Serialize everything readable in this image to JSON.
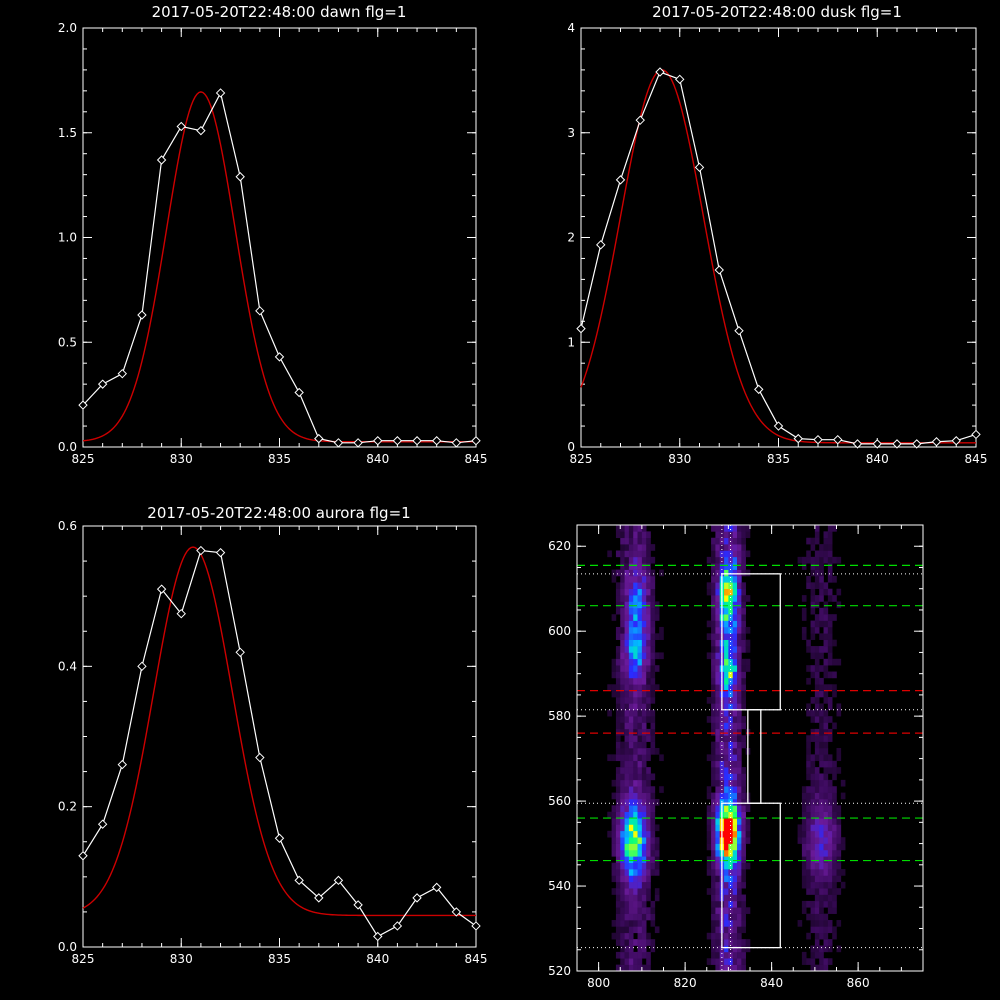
{
  "chart_data": [
    {
      "id": "dawn",
      "type": "line",
      "title": "2017-05-20T22:48:00 dawn flg=1",
      "xlim": [
        825,
        845
      ],
      "ylim": [
        0,
        2.0
      ],
      "xticks": [
        825,
        830,
        835,
        840,
        845
      ],
      "yticks": [
        0.0,
        0.5,
        1.0,
        1.5,
        2.0
      ],
      "ytick_labels": [
        "0.0",
        "0.5",
        "1.0",
        "1.5",
        "2.0"
      ],
      "xtick_labels": [
        "825",
        "830",
        "835",
        "840",
        "845"
      ],
      "series": [
        {
          "kind": "observed",
          "color": "#ffffff",
          "marker": "diamond",
          "x": [
            825,
            826,
            827,
            828,
            829,
            830,
            831,
            832,
            833,
            834,
            835,
            836,
            837,
            838,
            839,
            840,
            841,
            842,
            843,
            844,
            845
          ],
          "y": [
            0.2,
            0.3,
            0.35,
            0.63,
            1.37,
            1.53,
            1.51,
            1.69,
            1.29,
            0.65,
            0.43,
            0.26,
            0.04,
            0.02,
            0.02,
            0.03,
            0.03,
            0.03,
            0.03,
            0.02,
            0.03
          ]
        },
        {
          "kind": "fit",
          "color": "#cc0000",
          "model": "gaussian",
          "amplitude": 1.67,
          "center": 831.0,
          "sigma": 1.75,
          "offset": 0.025
        }
      ]
    },
    {
      "id": "dusk",
      "type": "line",
      "title": "2017-05-20T22:48:00 dusk flg=1",
      "xlim": [
        825,
        845
      ],
      "ylim": [
        0,
        4
      ],
      "xticks": [
        825,
        830,
        835,
        840,
        845
      ],
      "yticks": [
        0,
        1,
        2,
        3,
        4
      ],
      "ytick_labels": [
        "0",
        "1",
        "2",
        "3",
        "4"
      ],
      "xtick_labels": [
        "825",
        "830",
        "835",
        "840",
        "845"
      ],
      "series": [
        {
          "kind": "observed",
          "color": "#ffffff",
          "marker": "diamond",
          "x": [
            825,
            826,
            827,
            828,
            829,
            830,
            831,
            832,
            833,
            834,
            835,
            836,
            837,
            838,
            839,
            840,
            841,
            842,
            843,
            844,
            845
          ],
          "y": [
            1.13,
            1.93,
            2.55,
            3.12,
            3.58,
            3.51,
            2.67,
            1.69,
            1.11,
            0.55,
            0.2,
            0.08,
            0.07,
            0.07,
            0.03,
            0.03,
            0.03,
            0.03,
            0.05,
            0.06,
            0.12
          ]
        },
        {
          "kind": "fit",
          "color": "#cc0000",
          "model": "gaussian",
          "amplitude": 3.56,
          "center": 829.1,
          "sigma": 2.1,
          "offset": 0.04
        }
      ]
    },
    {
      "id": "aurora",
      "type": "line",
      "title": "2017-05-20T22:48:00 aurora flg=1",
      "xlim": [
        825,
        845
      ],
      "ylim": [
        0,
        0.6
      ],
      "xticks": [
        825,
        830,
        835,
        840,
        845
      ],
      "yticks": [
        0.0,
        0.2,
        0.4,
        0.6
      ],
      "ytick_labels": [
        "0.0",
        "0.2",
        "0.4",
        "0.6"
      ],
      "xtick_labels": [
        "825",
        "830",
        "835",
        "840",
        "845"
      ],
      "series": [
        {
          "kind": "observed",
          "color": "#ffffff",
          "marker": "diamond",
          "x": [
            825,
            826,
            827,
            828,
            829,
            830,
            831,
            832,
            833,
            834,
            835,
            836,
            837,
            838,
            839,
            840,
            841,
            842,
            843,
            844,
            845
          ],
          "y": [
            0.13,
            0.175,
            0.26,
            0.4,
            0.51,
            0.475,
            0.565,
            0.562,
            0.42,
            0.27,
            0.155,
            0.095,
            0.07,
            0.095,
            0.06,
            0.015,
            0.03,
            0.07,
            0.085,
            0.05,
            0.03
          ]
        },
        {
          "kind": "fit",
          "color": "#cc0000",
          "model": "gaussian",
          "amplitude": 0.525,
          "center": 830.6,
          "sigma": 2.0,
          "offset": 0.045
        }
      ]
    },
    {
      "id": "image",
      "type": "heatmap",
      "xlim": [
        795,
        875
      ],
      "ylim": [
        520,
        625
      ],
      "xticks": [
        800,
        820,
        840,
        860
      ],
      "yticks": [
        520,
        540,
        560,
        580,
        600,
        620
      ],
      "xtick_labels": [
        "800",
        "820",
        "840",
        "860"
      ],
      "ytick_labels": [
        "520",
        "540",
        "560",
        "580",
        "600",
        "620"
      ],
      "colormap": [
        "#000000",
        "#3b0a5c",
        "#6a1a9a",
        "#2a2aff",
        "#00c0ff",
        "#00ff80",
        "#ffff00",
        "#ff0000"
      ],
      "emission_columns": [
        {
          "x": 808,
          "width": 3,
          "strength": 0.45
        },
        {
          "x": 829.5,
          "width": 2.2,
          "strength": 0.85
        },
        {
          "x": 851,
          "width": 3,
          "strength": 0.25
        }
      ],
      "bright_spots": [
        {
          "x": 829.5,
          "y": 552,
          "sx": 1.8,
          "sy": 5,
          "v": 1.0
        },
        {
          "x": 807.5,
          "y": 550,
          "sx": 2.2,
          "sy": 6,
          "v": 0.6
        },
        {
          "x": 829.5,
          "y": 607,
          "sx": 1.5,
          "sy": 6,
          "v": 0.55
        },
        {
          "x": 829.5,
          "y": 590,
          "sx": 1.5,
          "sy": 4,
          "v": 0.4
        },
        {
          "x": 808.5,
          "y": 604,
          "sx": 1.8,
          "sy": 7,
          "v": 0.35
        },
        {
          "x": 808,
          "y": 593,
          "sx": 1.8,
          "sy": 4,
          "v": 0.3
        },
        {
          "x": 851,
          "y": 550,
          "sx": 2.5,
          "sy": 6,
          "v": 0.25
        }
      ],
      "green_dashed_y": [
        615.5,
        606,
        556,
        546
      ],
      "red_dashed_y": [
        586,
        576
      ],
      "white_dotted_y": [
        613.5,
        581.5,
        559.5,
        525.5
      ],
      "white_dotted_x": [
        828.5,
        830.5
      ],
      "white_boxes": [
        {
          "x0": 828.5,
          "x1": 842,
          "y0": 581.5,
          "y1": 613.5
        },
        {
          "x0": 834.5,
          "x1": 837.5,
          "y0": 559.5,
          "y1": 581.5
        },
        {
          "x0": 828.5,
          "x1": 842,
          "y0": 525.5,
          "y1": 559.5
        }
      ]
    }
  ]
}
